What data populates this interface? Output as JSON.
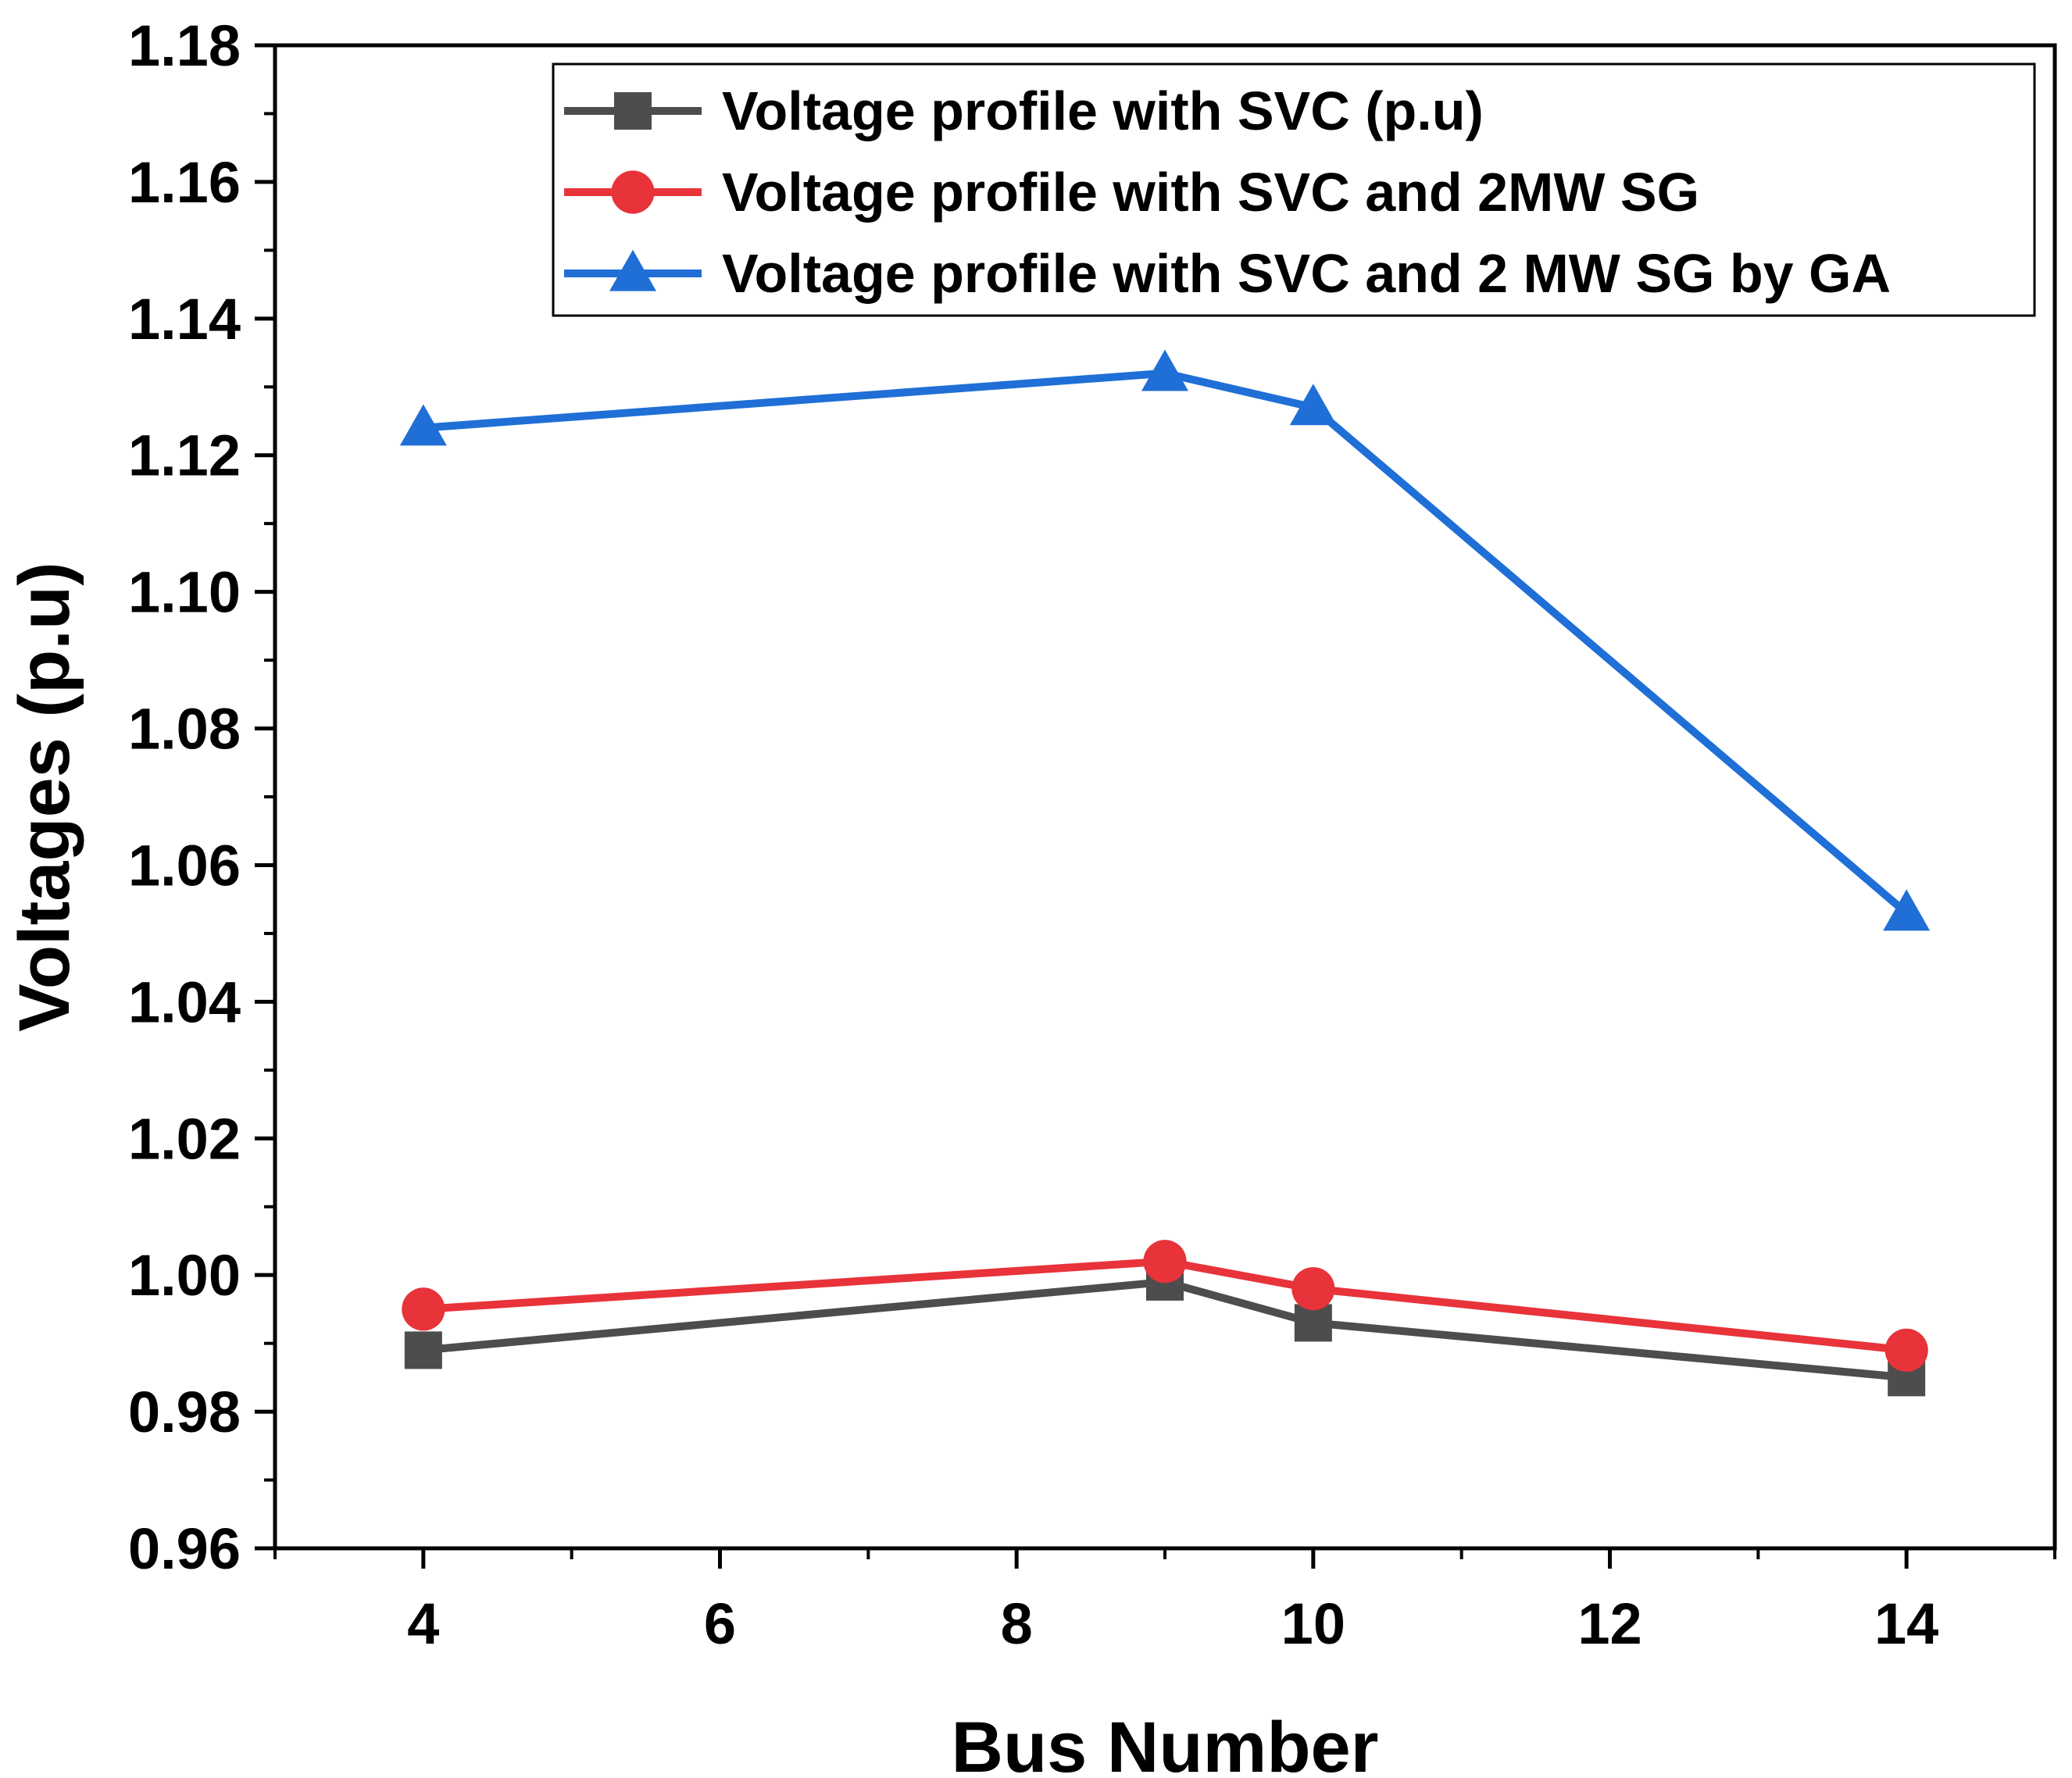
{
  "chart_data": {
    "type": "line",
    "title": "",
    "xlabel": "Bus Number",
    "ylabel": "Voltages (p.u)",
    "xlim": [
      3,
      15
    ],
    "ylim": [
      0.96,
      1.18
    ],
    "x_ticks": [
      4,
      6,
      8,
      10,
      12,
      14
    ],
    "x_tick_labels": [
      "4",
      "6",
      "8",
      "10",
      "12",
      "14"
    ],
    "y_ticks": [
      0.96,
      0.98,
      1.0,
      1.02,
      1.04,
      1.06,
      1.08,
      1.1,
      1.12,
      1.14,
      1.16,
      1.18
    ],
    "y_tick_labels": [
      "0.96",
      "0.98",
      "1.00",
      "1.02",
      "1.04",
      "1.06",
      "1.08",
      "1.10",
      "1.12",
      "1.14",
      "1.16",
      "1.18"
    ],
    "x": [
      4,
      9,
      10,
      14
    ],
    "series": [
      {
        "name": "Voltage profile with SVC (p.u)",
        "marker": "square",
        "color": "#4d4d4d",
        "values": [
          0.989,
          0.999,
          0.993,
          0.985
        ]
      },
      {
        "name": "Voltage profile with SVC and 2MW SG",
        "marker": "circle",
        "color": "#e8333a",
        "values": [
          0.995,
          1.002,
          0.998,
          0.989
        ]
      },
      {
        "name": "Voltage profile with SVC and 2 MW SG by GA",
        "marker": "triangle",
        "color": "#1f6fd6",
        "values": [
          1.124,
          1.132,
          1.127,
          1.053
        ]
      }
    ],
    "legend_position": "top-right",
    "grid": false
  }
}
